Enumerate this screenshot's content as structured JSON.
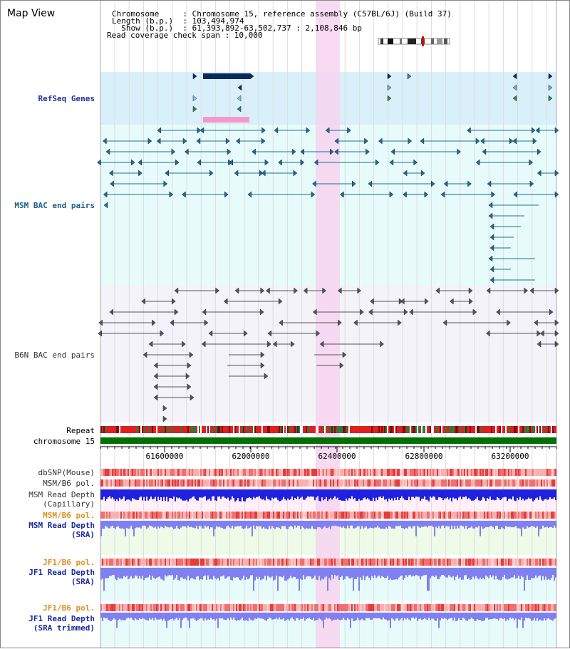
{
  "header": {
    "title": "Map View",
    "info": [
      {
        "label": "Chromosome     ",
        "value": "Chromosome 15, reference assembly (C57BL/6J) (Build 37)"
      },
      {
        "label": "Length (b.p.)  ",
        "value": "103,494,974"
      },
      {
        "label": "  Show (b.p.)  ",
        "value": "61,393,892-63,502,737 : 2,108,846 bp"
      }
    ],
    "coverage": "Read coverage check span : 10,000"
  },
  "tracks": {
    "refseq": "RefSeq Genes",
    "msm_bac": "MSM BAC end pairs",
    "b6n_bac": "B6N BAC end pairs",
    "repeat": "Repeat",
    "chrom": "chromosome 15",
    "dbsnp": "dbSNP(Mouse)",
    "msm_b6_pol": "MSM/B6 pol.",
    "msm_depth_cap_1": "MSM Read Depth",
    "msm_depth_cap_2": "(Capillary)",
    "msm_b6_pol_sra": "MSM/B6 pol.",
    "msm_depth_sra_1": "MSM Read Depth",
    "msm_depth_sra_2": "(SRA)",
    "jf1_b6_pol": "JF1/B6 pol.",
    "jf1_depth_1": "JF1 Read Depth",
    "jf1_depth_2": "(SRA)",
    "jf1_b6_pol_trim": "JF1/B6 pol.",
    "jf1_trim_1": "JF1 Read Depth",
    "jf1_trim_2": "(SRA trimmed)"
  },
  "axis": {
    "ticks": [
      "61600000",
      "62000000",
      "62400000",
      "62800000",
      "63200000"
    ]
  },
  "colors": {
    "refseq_bg": "#d9f0fb",
    "msm_bg": "#e8fbfb",
    "b6n_bg": "#f3f3f9",
    "highlight": "#f7d4f0",
    "gene": "#0a2a5c",
    "msm_pair": "#1a6f8f",
    "b6n_pair": "#555555",
    "repeat_red": "#e02020",
    "chrom_green": "#007000",
    "pol_pink": "#f08080",
    "depth_blue": "#2020e0",
    "depth_light": "#8080f0"
  }
}
